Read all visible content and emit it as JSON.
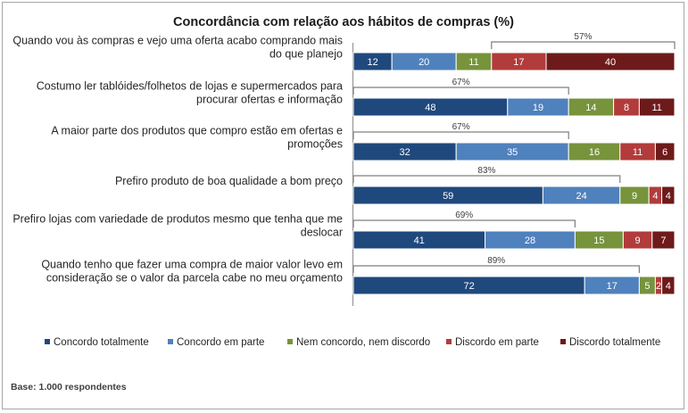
{
  "chart_data": {
    "type": "bar",
    "orientation": "horizontal",
    "stacked": true,
    "title": "Concordância com relação aos hábitos de compras (%)",
    "categories": [
      [
        "Quando vou às compras e vejo uma oferta acabo comprando mais",
        "do que planejo"
      ],
      [
        "Costumo ler tablóides/folhetos de lojas e supermercados para",
        "procurar ofertas e informação"
      ],
      [
        "A maior parte dos produtos que compro estão em ofertas e",
        "promoções"
      ],
      [
        "Prefiro produto de boa qualidade a bom preço"
      ],
      [
        "Prefiro lojas com variedade de produtos mesmo que tenha que me",
        "deslocar"
      ],
      [
        "Quando tenho que fazer uma compra de maior valor levo em",
        "consideração se o valor da parcela cabe no meu orçamento"
      ]
    ],
    "series": [
      {
        "name": "Concordo totalmente",
        "color": "#1f497d",
        "values": [
          12,
          48,
          32,
          59,
          41,
          72
        ]
      },
      {
        "name": "Concordo em parte",
        "color": "#4f81bd",
        "values": [
          20,
          19,
          35,
          24,
          28,
          17
        ]
      },
      {
        "name": "Nem concordo, nem discordo",
        "color": "#77933c",
        "values": [
          11,
          14,
          16,
          9,
          15,
          5
        ]
      },
      {
        "name": "Discordo em parte",
        "color": "#b23b3b",
        "values": [
          17,
          8,
          11,
          4,
          9,
          2
        ]
      },
      {
        "name": "Discordo totalmente",
        "color": "#6d1a1a",
        "values": [
          40,
          11,
          6,
          4,
          7,
          4
        ]
      }
    ],
    "bracket_labels": [
      "57%",
      "67%",
      "67%",
      "83%",
      "69%",
      "89%"
    ],
    "xlim": [
      0,
      100
    ],
    "legend_position": "bottom"
  },
  "footnote": "Base: 1.000 respondentes"
}
